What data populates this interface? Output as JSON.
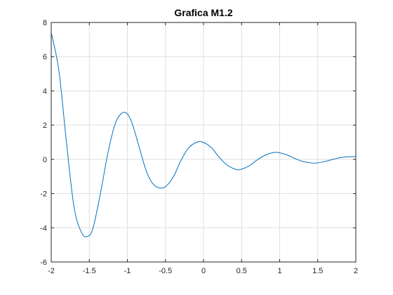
{
  "chart_data": {
    "type": "line",
    "title": "Grafica M1.2",
    "xlabel": "",
    "ylabel": "",
    "xlim": [
      -2,
      2
    ],
    "ylim": [
      -6,
      8
    ],
    "x_ticks": [
      -2,
      -1.5,
      -1,
      -0.5,
      0,
      0.5,
      1,
      1.5,
      2
    ],
    "x_tick_labels": [
      "-2",
      "-1.5",
      "-1",
      "-0.5",
      "0",
      "0.5",
      "1",
      "1.5",
      "2"
    ],
    "y_ticks": [
      -6,
      -4,
      -2,
      0,
      2,
      4,
      6,
      8
    ],
    "y_tick_labels": [
      "-6",
      "-4",
      "-2",
      "0",
      "2",
      "4",
      "6",
      "8"
    ],
    "grid": true,
    "legend": "none",
    "series": [
      {
        "color": "#0072bd",
        "x": [
          -2,
          -1.9,
          -1.8,
          -1.7,
          -1.6,
          -1.52,
          -1.45,
          -1.35,
          -1.25,
          -1.15,
          -1.04,
          -0.95,
          -0.85,
          -0.75,
          -0.65,
          -0.52,
          -0.4,
          -0.3,
          -0.2,
          -0.1,
          -0.02,
          0.1,
          0.2,
          0.3,
          0.4,
          0.48,
          0.6,
          0.7,
          0.8,
          0.9,
          0.98,
          1.1,
          1.2,
          1.3,
          1.4,
          1.48,
          1.6,
          1.7,
          1.8,
          1.9,
          2
        ],
        "y": [
          7.4,
          5.2,
          1.0,
          -2.8,
          -4.3,
          -4.5,
          -4.0,
          -1.9,
          0.5,
          2.2,
          2.75,
          2.25,
          0.8,
          -0.7,
          -1.5,
          -1.65,
          -1.05,
          -0.1,
          0.65,
          0.98,
          1.02,
          0.7,
          0.15,
          -0.3,
          -0.55,
          -0.6,
          -0.38,
          -0.05,
          0.22,
          0.38,
          0.4,
          0.25,
          0.05,
          -0.12,
          -0.2,
          -0.22,
          -0.12,
          0.0,
          0.1,
          0.15,
          0.16
        ]
      }
    ]
  }
}
